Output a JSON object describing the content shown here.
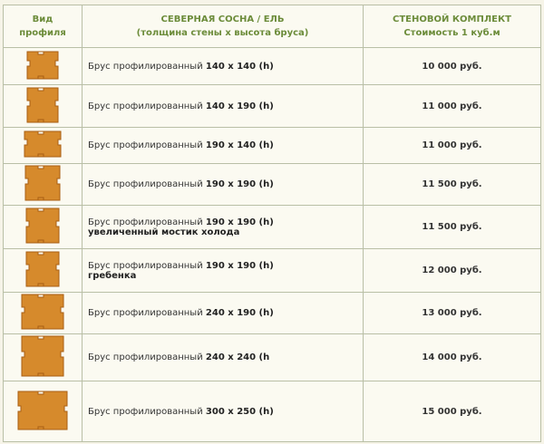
{
  "table": {
    "header": [
      [
        "Вид",
        "профиля"
      ],
      [
        "СЕВЕРНАЯ СОСНА / ЕЛЬ",
        "(толщина стены х высота бруса)"
      ],
      [
        "СТЕНОВОЙ КОМПЛЕКТ",
        "Стоимость 1 куб.м"
      ]
    ],
    "rows": [
      {
        "name": "Брус профилированный",
        "size": "140 х 140 (h)",
        "price": "10 000 руб."
      },
      {
        "name": "Брус профилированный",
        "size": "140 х 190 (h)",
        "price": "11 000 руб."
      },
      {
        "name": "Брус профилированный",
        "size": "190 х 140 (h)",
        "price": "11 000 руб."
      },
      {
        "name": "Брус профилированный",
        "size": "190 х 190 (h)",
        "price": "11 500 руб."
      },
      {
        "name": "Брус профилированный",
        "size": "190 х 190 (h)",
        "note": "увеличенный мостик холода",
        "price": "11 500 руб."
      },
      {
        "name": "Брус профилированный",
        "size": "190 х 190 (h)",
        "note": "гребенка",
        "price": "12 000 руб."
      },
      {
        "name": "Брус профилированный",
        "size": "240 х 190 (h)",
        "price": "13 000 руб."
      },
      {
        "name": "Брус профилированный",
        "size": "240 х 240 (h",
        "price": "14 000 руб."
      },
      {
        "name": "Брус профилированный",
        "size": "300 х 250 (h)",
        "price": "15 000 руб."
      }
    ]
  }
}
